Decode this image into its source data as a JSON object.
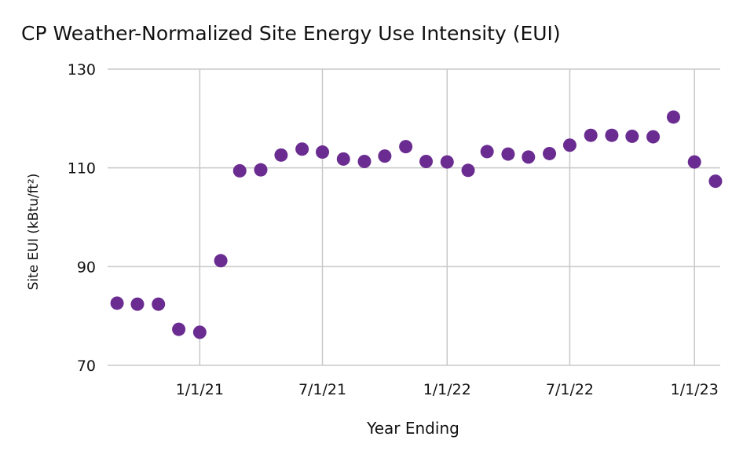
{
  "chart_data": {
    "type": "scatter",
    "title": "CP Weather-Normalized Site Energy Use Intensity (EUI)",
    "xlabel": "Year Ending",
    "ylabel": "Site EUI (kBtu/ft²)",
    "ylim": [
      70,
      130
    ],
    "yticks": [
      "70",
      "90",
      "110",
      "130"
    ],
    "xlim": [
      "2020-08-18",
      "2023-02-08"
    ],
    "xticks": [
      {
        "label": "1/1/21",
        "date": "2021-01-01"
      },
      {
        "label": "7/1/21",
        "date": "2021-07-01"
      },
      {
        "label": "1/1/22",
        "date": "2022-01-01"
      },
      {
        "label": "7/1/22",
        "date": "2022-07-01"
      },
      {
        "label": "1/1/23",
        "date": "2023-01-01"
      }
    ],
    "grid": true,
    "marker_color": "#6a2c91",
    "points": [
      {
        "x": "2020-09-01",
        "y": 82.6
      },
      {
        "x": "2020-10-01",
        "y": 82.4
      },
      {
        "x": "2020-11-01",
        "y": 82.4
      },
      {
        "x": "2020-12-01",
        "y": 77.3
      },
      {
        "x": "2021-01-01",
        "y": 76.7
      },
      {
        "x": "2021-02-01",
        "y": 91.2
      },
      {
        "x": "2021-03-01",
        "y": 109.4
      },
      {
        "x": "2021-04-01",
        "y": 109.6
      },
      {
        "x": "2021-05-01",
        "y": 112.6
      },
      {
        "x": "2021-06-01",
        "y": 113.8
      },
      {
        "x": "2021-07-01",
        "y": 113.2
      },
      {
        "x": "2021-08-01",
        "y": 111.8
      },
      {
        "x": "2021-09-01",
        "y": 111.3
      },
      {
        "x": "2021-10-01",
        "y": 112.4
      },
      {
        "x": "2021-11-01",
        "y": 114.3
      },
      {
        "x": "2021-12-01",
        "y": 111.3
      },
      {
        "x": "2022-01-01",
        "y": 111.2
      },
      {
        "x": "2022-02-01",
        "y": 109.5
      },
      {
        "x": "2022-03-01",
        "y": 113.3
      },
      {
        "x": "2022-04-01",
        "y": 112.8
      },
      {
        "x": "2022-05-01",
        "y": 112.2
      },
      {
        "x": "2022-06-01",
        "y": 112.9
      },
      {
        "x": "2022-07-01",
        "y": 114.6
      },
      {
        "x": "2022-08-01",
        "y": 116.6
      },
      {
        "x": "2022-09-01",
        "y": 116.6
      },
      {
        "x": "2022-10-01",
        "y": 116.4
      },
      {
        "x": "2022-11-01",
        "y": 116.3
      },
      {
        "x": "2022-12-01",
        "y": 120.3
      },
      {
        "x": "2023-01-01",
        "y": 111.2
      },
      {
        "x": "2023-02-01",
        "y": 107.3
      }
    ]
  }
}
